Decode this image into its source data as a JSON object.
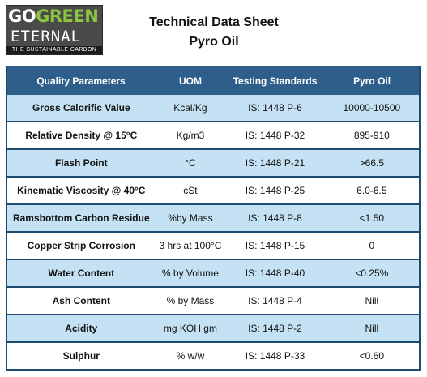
{
  "logo": {
    "line1_a": "GO",
    "line1_b": "GREEN",
    "line2": "ETERNAL",
    "tagline": "THE SUSTAINABLE CARBON"
  },
  "header": {
    "title": "Technical Data Sheet",
    "subtitle": "Pyro Oil"
  },
  "table": {
    "columns": [
      "Quality Parameters",
      "UOM",
      "Testing Standards",
      "Pyro Oil"
    ],
    "rows": [
      [
        "Gross Calorific Value",
        "Kcal/Kg",
        "IS: 1448 P-6",
        "10000-10500"
      ],
      [
        "Relative Density @ 15°C",
        "Kg/m3",
        "IS: 1448 P-32",
        "895-910"
      ],
      [
        "Flash Point",
        "°C",
        "IS: 1448 P-21",
        ">66.5"
      ],
      [
        "Kinematic Viscosity @ 40°C",
        "cSt",
        "IS: 1448 P-25",
        "6.0-6.5"
      ],
      [
        "Ramsbottom Carbon Residue",
        "%by Mass",
        "IS: 1448 P-8",
        "<1.50"
      ],
      [
        "Copper Strip Corrosion",
        "3 hrs at 100°C",
        "IS: 1448 P-15",
        "0"
      ],
      [
        "Water Content",
        "% by Volume",
        "IS: 1448 P-40",
        "<0.25%"
      ],
      [
        "Ash Content",
        "% by Mass",
        "IS: 1448 P-4",
        "Nill"
      ],
      [
        "Acidity",
        "mg KOH gm",
        "IS: 1448 P-2",
        "Nill"
      ],
      [
        "Sulphur",
        "% w/w",
        "IS: 1448 P-33",
        "<0.60"
      ]
    ]
  },
  "colors": {
    "header_bg": "#2e5f8a",
    "row_shade": "#c4e2f3",
    "logo_green": "#8bc540"
  }
}
